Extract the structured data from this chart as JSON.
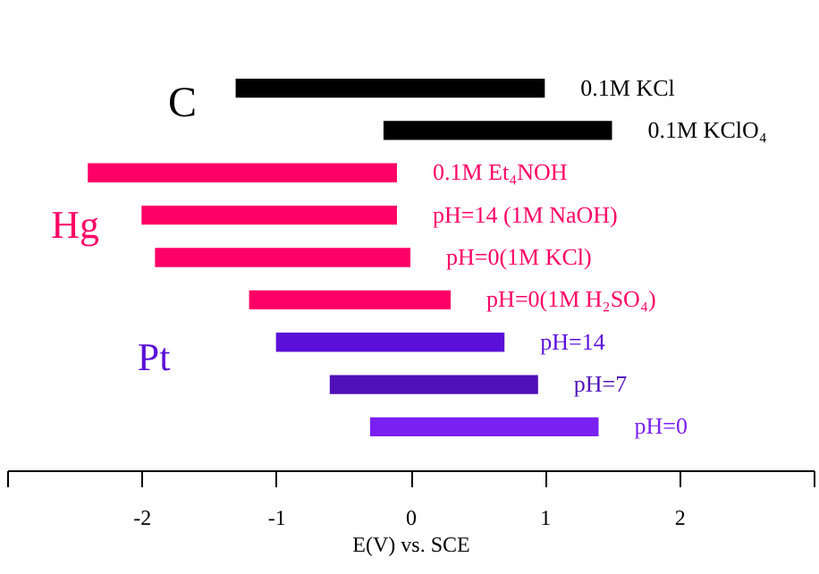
{
  "chart_data": {
    "type": "bar",
    "orientation": "horizontal",
    "xlabel": "E(V) vs. SCE",
    "categories": [
      "0.1M KCl",
      "0.1M KClO₄",
      "0.1M Et₄NOH",
      "pH=14 (1M NaOH)",
      "pH=0(1M KCl)",
      "pH=0(1M H₂SO₄)",
      "pH=14",
      "pH=7",
      "pH=0"
    ],
    "base": [
      -1.3,
      -0.2,
      -2.4,
      -2.0,
      -1.9,
      -1.2,
      -1.0,
      -0.6,
      -0.3
    ],
    "values": [
      2.3,
      1.7,
      2.3,
      1.9,
      1.9,
      1.5,
      1.7,
      1.55,
      1.7
    ],
    "colors": [
      "#000000",
      "#000000",
      "#ff0066",
      "#ff0066",
      "#ff0066",
      "#ff0066",
      "#5a10d8",
      "#5010b8",
      "#7a20f0"
    ],
    "xlim": [
      -3,
      3
    ],
    "xticks": [
      {
        "value": -3,
        "label": null
      },
      -2,
      -1,
      0,
      1,
      2,
      {
        "value": 3,
        "label": null
      }
    ],
    "annotations": [
      "C",
      "Hg",
      "Pt"
    ],
    "grid": false
  }
}
